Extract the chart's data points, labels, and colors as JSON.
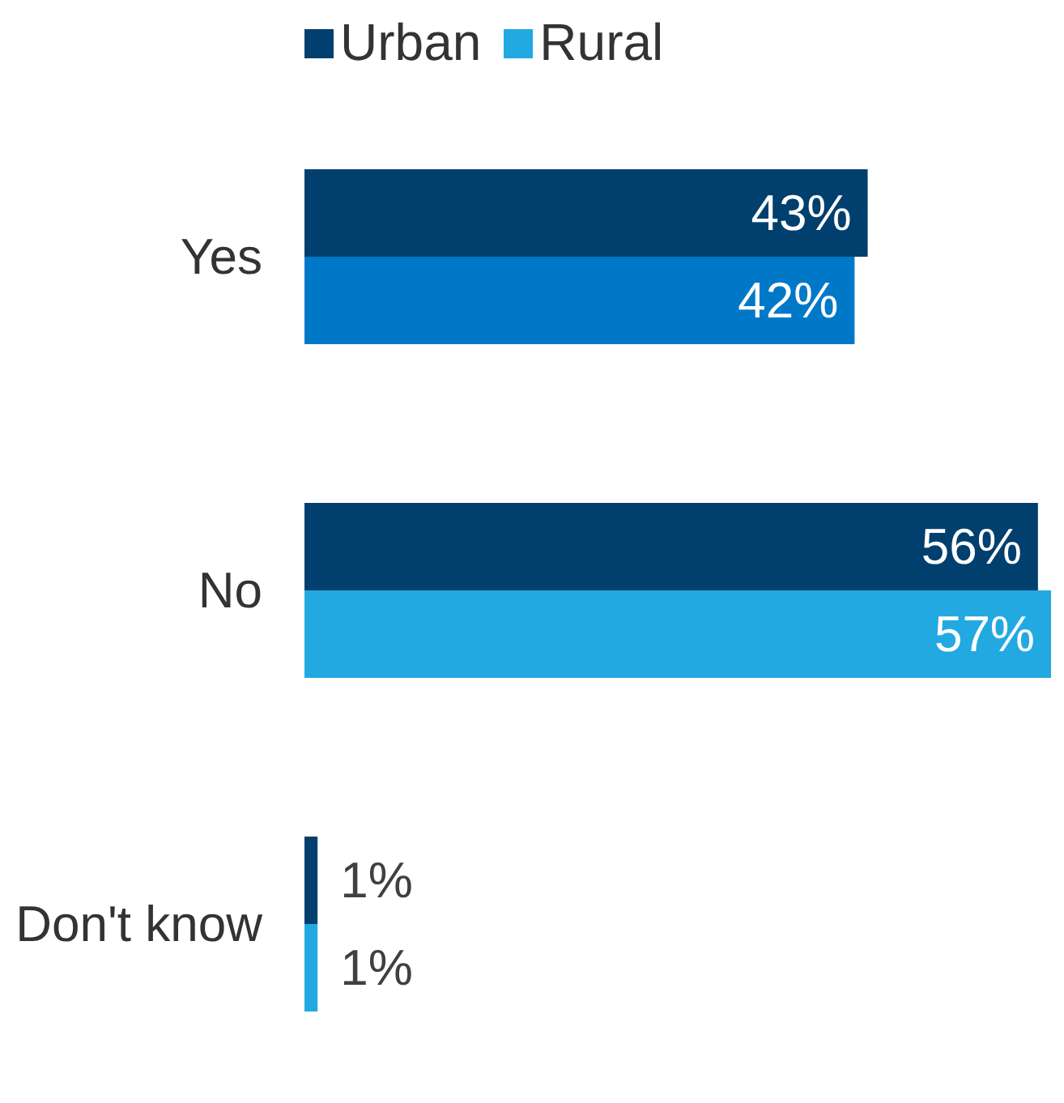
{
  "chart_data": {
    "type": "bar",
    "orientation": "horizontal",
    "categories": [
      "Yes",
      "No",
      "Don't know"
    ],
    "series": [
      {
        "name": "Urban",
        "color": "#003f6e",
        "values": [
          43,
          56,
          1
        ],
        "value_labels": [
          "43%",
          "56%",
          "1%"
        ]
      },
      {
        "name": "Rural",
        "color": "#22a9e1",
        "colors": [
          "#0078c8",
          "#22a9e1",
          "#22a9e1"
        ],
        "values": [
          42,
          57,
          1
        ],
        "value_labels": [
          "42%",
          "57%",
          "1%"
        ]
      }
    ],
    "legend": "top"
  }
}
